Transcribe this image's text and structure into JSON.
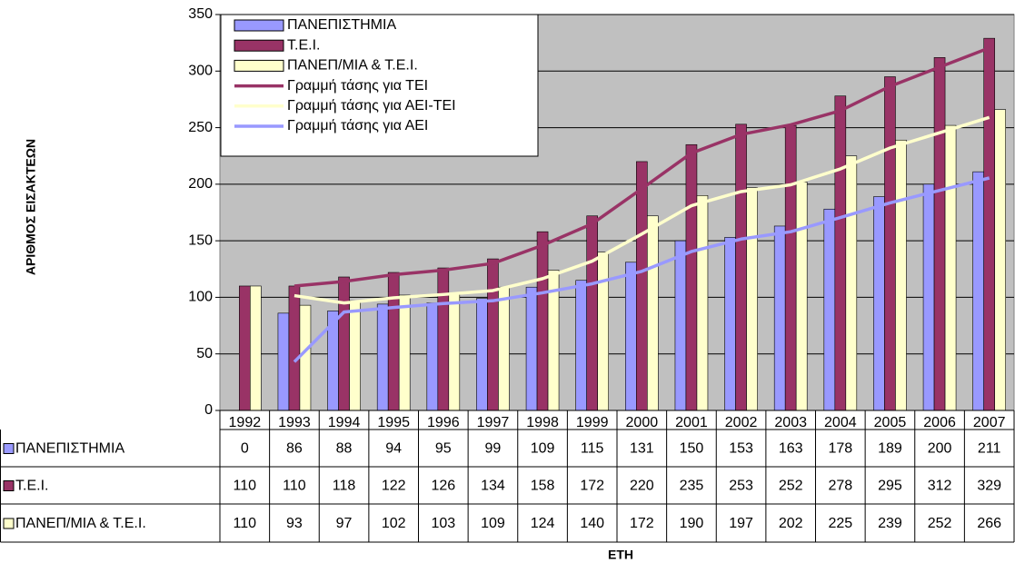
{
  "chart_data": {
    "type": "bar",
    "y_axis_label": "ΑΡΙΘΜΟΣ ΕΙΣΑΚΤΕΩΝ",
    "x_axis_label": "ΕΤΗ",
    "categories": [
      "1992",
      "1993",
      "1994",
      "1995",
      "1996",
      "1997",
      "1998",
      "1999",
      "2000",
      "2001",
      "2002",
      "2003",
      "2004",
      "2005",
      "2006",
      "2007"
    ],
    "series": [
      {
        "name": "ΠΑΝΕΠΙΣΤΗΜΙΑ",
        "color": "#9999ff",
        "values": [
          0,
          86,
          88,
          94,
          95,
          99,
          109,
          115,
          131,
          150,
          153,
          163,
          178,
          189,
          200,
          211
        ]
      },
      {
        "name": "Τ.Ε.Ι.",
        "color": "#993366",
        "values": [
          110,
          110,
          118,
          122,
          126,
          134,
          158,
          172,
          220,
          235,
          253,
          252,
          278,
          295,
          312,
          329
        ]
      },
      {
        "name": "ΠΑΝΕΠ/ΜΙΑ & Τ.Ε.Ι.",
        "color": "#ffffcc",
        "values": [
          110,
          93,
          97,
          102,
          103,
          109,
          124,
          140,
          172,
          190,
          197,
          202,
          225,
          239,
          252,
          266
        ]
      }
    ],
    "trend_lines": [
      {
        "name": "Γραμμή τάσης για ΤΕΙ",
        "type": "line",
        "color": "#993366",
        "values": [
          null,
          110,
          114,
          120,
          124,
          130,
          146,
          165,
          196,
          227.5,
          244,
          252.5,
          265,
          286.5,
          303.5,
          320.5
        ]
      },
      {
        "name": "Γραμμή τάσης για ΑΕΙ-ΤΕΙ",
        "type": "line",
        "color": "#ffffcc",
        "values": [
          null,
          101.5,
          95,
          99.5,
          102.5,
          106,
          116.5,
          132,
          156,
          181,
          193.5,
          199.5,
          213.5,
          232,
          245.5,
          259
        ]
      },
      {
        "name": "Γραμμή τάσης για ΑΕΙ",
        "type": "line",
        "color": "#9999ff",
        "values": [
          null,
          43,
          87,
          91,
          94.5,
          97,
          104,
          112,
          123,
          140.5,
          151.5,
          158,
          170.5,
          183.5,
          194.5,
          205.5
        ]
      }
    ],
    "ylim": [
      0,
      350
    ],
    "yticks": [
      0,
      50,
      100,
      150,
      200,
      250,
      300,
      350
    ],
    "grid": true,
    "legend": "top-left",
    "data_table": true
  }
}
